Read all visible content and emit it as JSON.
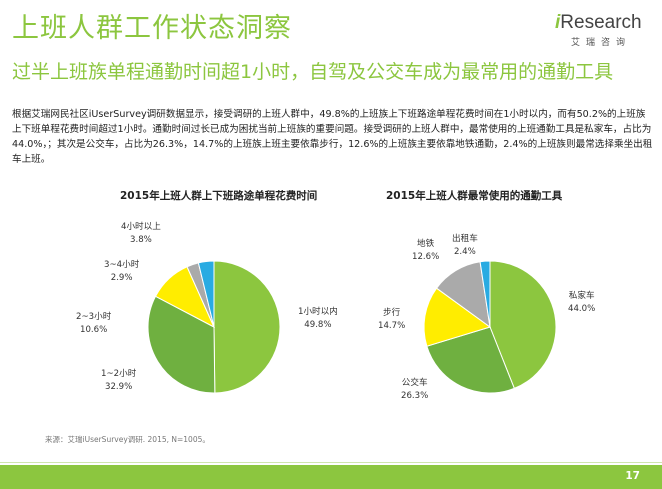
{
  "header": {
    "title": "上班人群工作状态洞察",
    "subtitle": "过半上班族单程通勤时间超1小时，自驾及公交车成为最常用的通勤工具"
  },
  "logo": {
    "main_prefix": "i",
    "main_rest": "Research",
    "sub": "艾瑞咨询"
  },
  "body_text": "根据艾瑞网民社区iUserSurvey调研数据显示，接受调研的上班人群中，49.8%的上班族上下班路途单程花费时间在1小时以内，而有50.2%的上班族上下班单程花费时间超过1小时。通勤时间过长已成为困扰当前上班族的重要问题。接受调研的上班人群中，最常使用的上班通勤工具是私家车，占比为44.0%，；其次是公交车，占比为26.3%，14.7%的上班族上班主要依靠步行，12.6%的上班族主要依靠地铁通勤，2.4%的上班族则最常选择乘坐出租车上班。",
  "chart_data": [
    {
      "type": "pie",
      "title": "2015年上班人群上下班路途单程花费时间",
      "categories": [
        "1小时以内",
        "1~2小时",
        "2~3小时",
        "3~4小时",
        "4小时以上"
      ],
      "values": [
        49.8,
        32.9,
        10.6,
        2.9,
        3.8
      ],
      "labels": [
        "49.8%",
        "32.9%",
        "10.6%",
        "2.9%",
        "3.8%"
      ],
      "colors": [
        "#8cc63f",
        "#6fb040",
        "#ffed00",
        "#aaaaaa",
        "#29abe2"
      ]
    },
    {
      "type": "pie",
      "title": "2015年上班人群最常使用的通勤工具",
      "categories": [
        "私家车",
        "公交车",
        "步行",
        "地铁",
        "出租车"
      ],
      "values": [
        44.0,
        26.3,
        14.7,
        12.6,
        2.4
      ],
      "labels": [
        "44.0%",
        "26.3%",
        "14.7%",
        "12.6%",
        "2.4%"
      ],
      "colors": [
        "#8cc63f",
        "#6fb040",
        "#ffed00",
        "#aaaaaa",
        "#29abe2"
      ]
    }
  ],
  "source": "来源：艾瑞iUserSurvey调研. 2015, N=1005。",
  "page_number": "17"
}
